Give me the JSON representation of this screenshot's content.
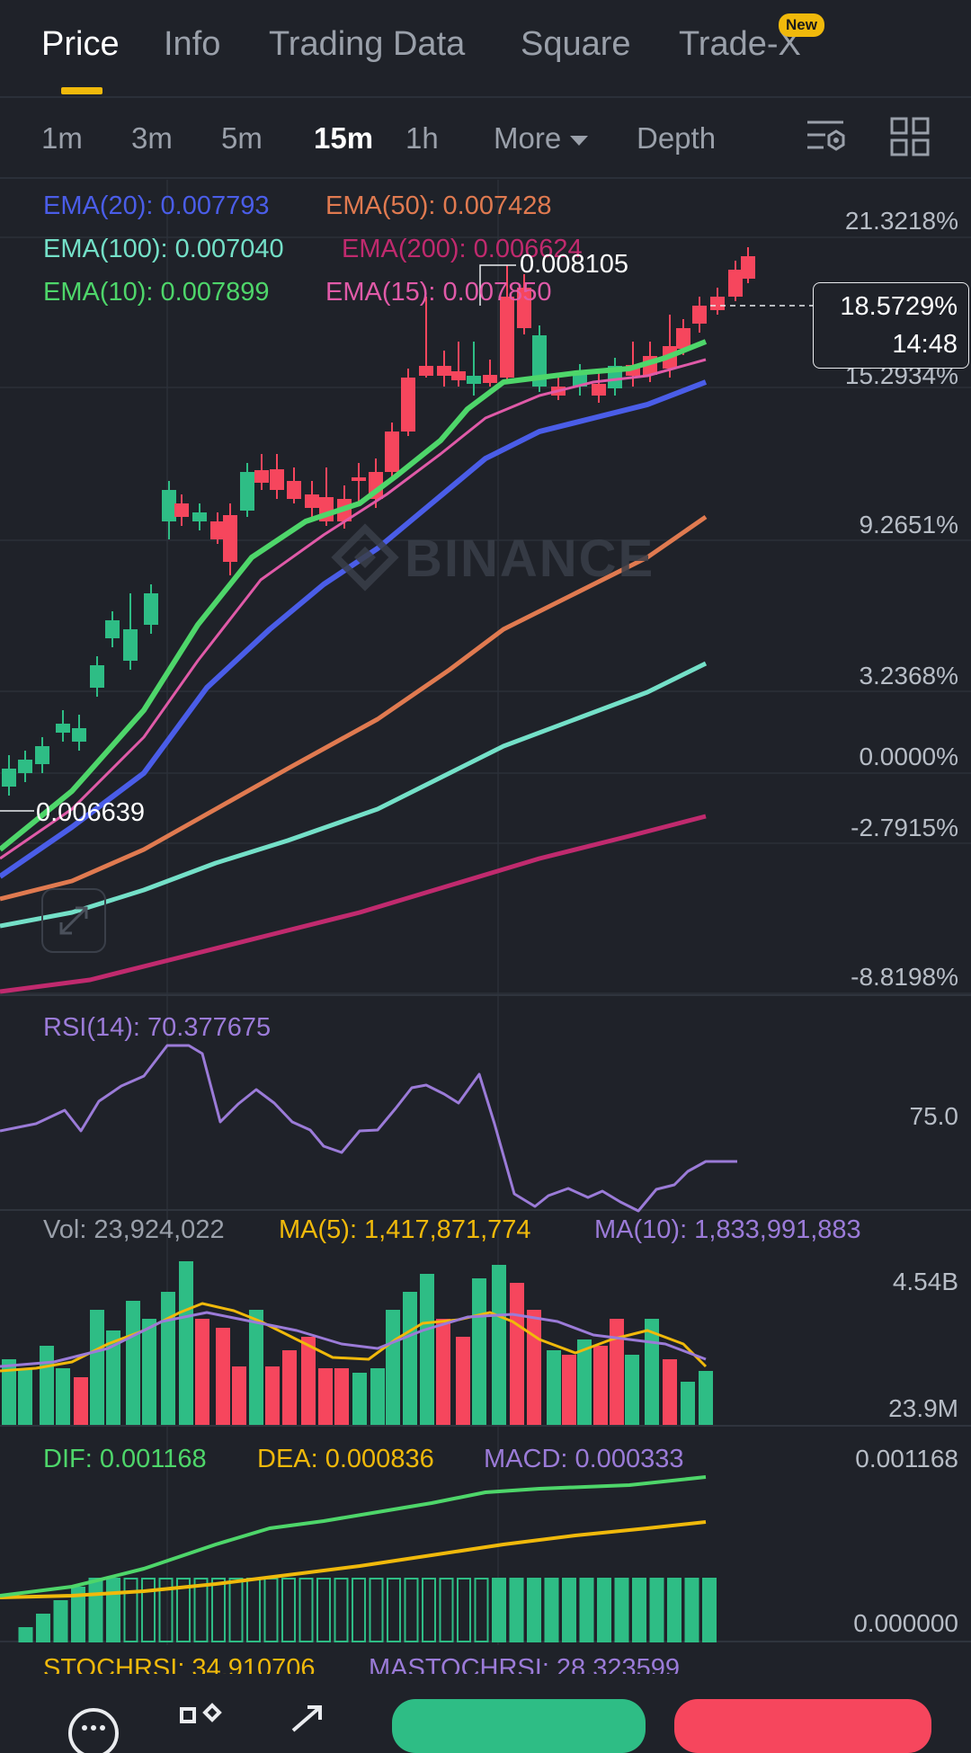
{
  "tabs": [
    {
      "label": "Price",
      "active": true
    },
    {
      "label": "Info",
      "active": false
    },
    {
      "label": "Trading Data",
      "active": false
    },
    {
      "label": "Square",
      "active": false
    },
    {
      "label": "Trade-X",
      "active": false,
      "badge": "New"
    }
  ],
  "intervals": [
    {
      "label": "1m"
    },
    {
      "label": "3m"
    },
    {
      "label": "5m"
    },
    {
      "label": "15m",
      "active": true
    },
    {
      "label": "1h"
    },
    {
      "label": "More"
    },
    {
      "label": "Depth"
    }
  ],
  "icons": {
    "settings": "chart-settings-icon",
    "layout": "grid-layout-icon",
    "expand": "expand-icon"
  },
  "ema": {
    "ema20": "EMA(20): 0.007793",
    "ema50": "EMA(50): 0.007428",
    "ema100": "EMA(100): 0.007040",
    "ema200": "EMA(200): 0.006624",
    "ema10": "EMA(10): 0.007899",
    "ema15": "EMA(15): 0.007850"
  },
  "colors": {
    "ema20": "#4a5de8",
    "ema50": "#e07a50",
    "ema100": "#74e0c8",
    "ema200": "#c02a6e",
    "ema10": "#4ed66a",
    "ema15": "#e05aa8",
    "up": "#2ebd85",
    "down": "#f6465d",
    "rsi": "#9b7bd8",
    "ma5": "#f0b90b",
    "ma10": "#9b7bd8",
    "dif": "#4ed66a",
    "dea": "#f0b90b",
    "accent": "#f0b90b"
  },
  "axis": {
    "price": [
      "21.3218%",
      "15.2934%",
      "9.2651%",
      "3.2368%",
      "0.0000%",
      "-2.7915%",
      "-8.8198%"
    ],
    "rsi": "75.0",
    "vol_max": "4.54B",
    "vol_min": "23.9M",
    "macd_max": "0.001168",
    "macd_min": "0.000000"
  },
  "current": {
    "pct": "18.5729%",
    "countdown": "14:48"
  },
  "extremes": {
    "high": "0.008105",
    "low": "0.006639"
  },
  "watermark": "BINANCE",
  "rsi": {
    "label": "RSI(14): 70.377675"
  },
  "vol": {
    "vol": "Vol: 23,924,022",
    "ma5": "MA(5): 1,417,871,774",
    "ma10": "MA(10): 1,833,991,883"
  },
  "macd": {
    "dif": "DIF: 0.001168",
    "dea": "DEA: 0.000836",
    "macd": "MACD: 0.000333"
  },
  "stoch": {
    "k": "STOCHRSI: 34.910706",
    "d": "MASTOCHRSI: 28.323599"
  }
}
